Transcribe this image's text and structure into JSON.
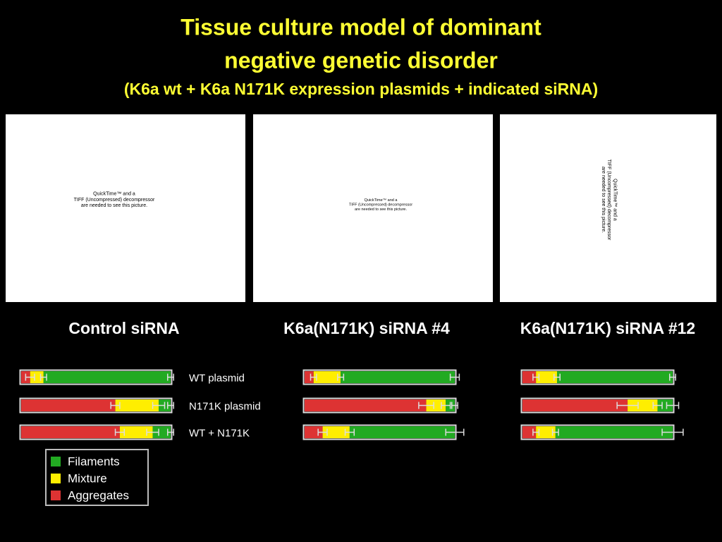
{
  "title": {
    "lines": [
      "Tissue culture model of dominant",
      "negative genetic disorder"
    ],
    "subtitle": "(K6a wt + K6a N171K expression plasmids + indicated siRNA)"
  },
  "placeholders": [
    {
      "lines": [
        "QuickTime™ and a",
        "TIFF (Uncompressed) decompressor",
        "are needed to see this picture."
      ]
    },
    {
      "lines": [
        "QuickTime™ and a",
        "TIFF (Uncompressed) decompressor",
        "are needed to see this picture."
      ]
    },
    {
      "lines": [
        "QuickTime™ and a",
        "TIFF (Uncompressed) decompressor",
        "are needed to see this picture."
      ]
    }
  ],
  "chart_data": {
    "type": "stacked-bar",
    "orientation": "horizontal",
    "xlim": [
      0,
      100
    ],
    "categories": [
      "WT plasmid",
      "N171K plasmid",
      "WT + N171K"
    ],
    "series": [
      {
        "name": "Aggregates",
        "color": "#dd3333"
      },
      {
        "name": "Mixture",
        "color": "#ffee00"
      },
      {
        "name": "Filaments",
        "color": "#22aa22"
      }
    ],
    "legend_order": [
      2,
      1,
      0
    ],
    "panels": [
      {
        "title": "Control siRNA",
        "series": [
          {
            "values": [
              6,
              63,
              66
            ],
            "errors": [
              3,
              3,
              3
            ]
          },
          {
            "values": [
              9,
              29,
              22
            ],
            "errors": [
              2,
              4,
              4
            ]
          },
          {
            "values": [
              85,
              8,
              12
            ],
            "errors": [
              2,
              2,
              2
            ]
          }
        ]
      },
      {
        "title": "K6a(N171K) siRNA #4",
        "series": [
          {
            "values": [
              6,
              81,
              12
            ],
            "errors": [
              2,
              5,
              3
            ]
          },
          {
            "values": [
              18,
              13,
              18
            ],
            "errors": [
              2,
              3,
              3
            ]
          },
          {
            "values": [
              76,
              6,
              70
            ],
            "errors": [
              3,
              2,
              6
            ]
          }
        ]
      },
      {
        "title": "K6a(N171K) siRNA #12",
        "series": [
          {
            "values": [
              9,
              70,
              9
            ],
            "errors": [
              2,
              7,
              2
            ]
          },
          {
            "values": [
              14,
              20,
              13
            ],
            "errors": [
              2,
              3,
              2
            ]
          },
          {
            "values": [
              77,
              10,
              78
            ],
            "errors": [
              2,
              4,
              7
            ]
          }
        ]
      }
    ]
  }
}
